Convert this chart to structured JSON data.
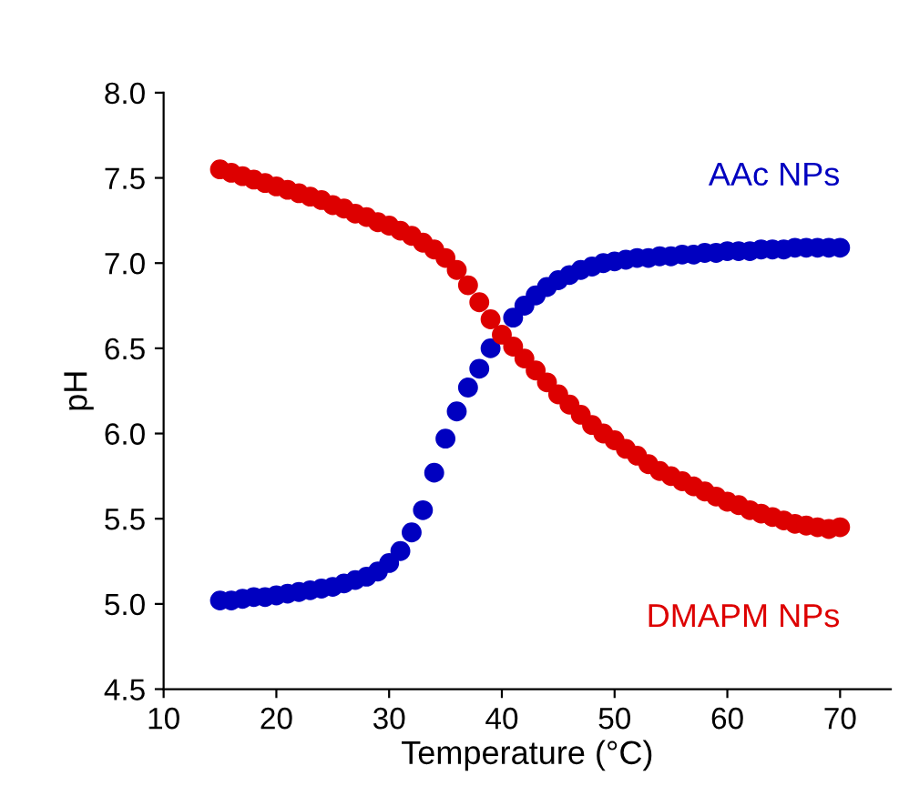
{
  "chart_data": {
    "type": "scatter",
    "xlabel": "Temperature (°C)",
    "ylabel": "pH",
    "x": [
      15,
      16,
      17,
      18,
      19,
      20,
      21,
      22,
      23,
      24,
      25,
      26,
      27,
      28,
      29,
      30,
      31,
      32,
      33,
      34,
      35,
      36,
      37,
      38,
      39,
      40,
      41,
      42,
      43,
      44,
      45,
      46,
      47,
      48,
      49,
      50,
      51,
      52,
      53,
      54,
      55,
      56,
      57,
      58,
      59,
      60,
      61,
      62,
      63,
      64,
      65,
      66,
      67,
      68,
      69,
      70
    ],
    "series": [
      {
        "name": "AAc NPs",
        "color": "#0000c0",
        "values": [
          5.02,
          5.02,
          5.03,
          5.04,
          5.04,
          5.05,
          5.06,
          5.07,
          5.08,
          5.09,
          5.1,
          5.12,
          5.14,
          5.16,
          5.19,
          5.24,
          5.31,
          5.42,
          5.55,
          5.77,
          5.97,
          6.13,
          6.27,
          6.38,
          6.5,
          null,
          6.68,
          6.75,
          6.81,
          6.86,
          6.9,
          6.93,
          6.96,
          6.98,
          7.0,
          7.01,
          7.02,
          7.03,
          7.03,
          7.04,
          7.04,
          7.05,
          7.05,
          7.06,
          7.06,
          7.07,
          7.07,
          7.07,
          7.08,
          7.08,
          7.08,
          7.09,
          7.09,
          7.09,
          7.09,
          7.09
        ]
      },
      {
        "name": "DMAPM NPs",
        "color": "#dd0000",
        "values": [
          7.55,
          7.53,
          7.51,
          7.49,
          7.47,
          7.45,
          7.43,
          7.41,
          7.39,
          7.37,
          7.34,
          7.32,
          7.29,
          7.27,
          7.24,
          7.22,
          7.19,
          7.16,
          7.12,
          7.08,
          7.03,
          6.96,
          6.87,
          6.77,
          6.67,
          6.58,
          6.51,
          6.44,
          6.37,
          6.3,
          6.23,
          6.17,
          6.11,
          6.05,
          6.0,
          5.96,
          5.91,
          5.87,
          5.82,
          5.78,
          5.75,
          5.72,
          5.69,
          5.66,
          5.63,
          5.6,
          5.58,
          5.55,
          5.53,
          5.51,
          5.49,
          5.47,
          5.46,
          5.45,
          5.44,
          5.45
        ]
      }
    ],
    "xlim": [
      10,
      74.5
    ],
    "xticks": [
      10,
      20,
      30,
      40,
      50,
      60,
      70
    ],
    "ylim": [
      4.5,
      8.0
    ],
    "yticks": [
      {
        "value": 4.5,
        "label": "4.5"
      },
      {
        "value": 5,
        "label": "5.0"
      },
      {
        "value": 5.5,
        "label": "5.5"
      },
      {
        "value": 6,
        "label": "6.0"
      },
      {
        "value": 6.5,
        "label": "6.5"
      },
      {
        "value": 7,
        "label": "7.0"
      },
      {
        "value": 7.5,
        "label": "7.5"
      },
      {
        "value": 8,
        "label": "8.0"
      }
    ],
    "marker": "circle",
    "grid": false,
    "legend": false
  }
}
